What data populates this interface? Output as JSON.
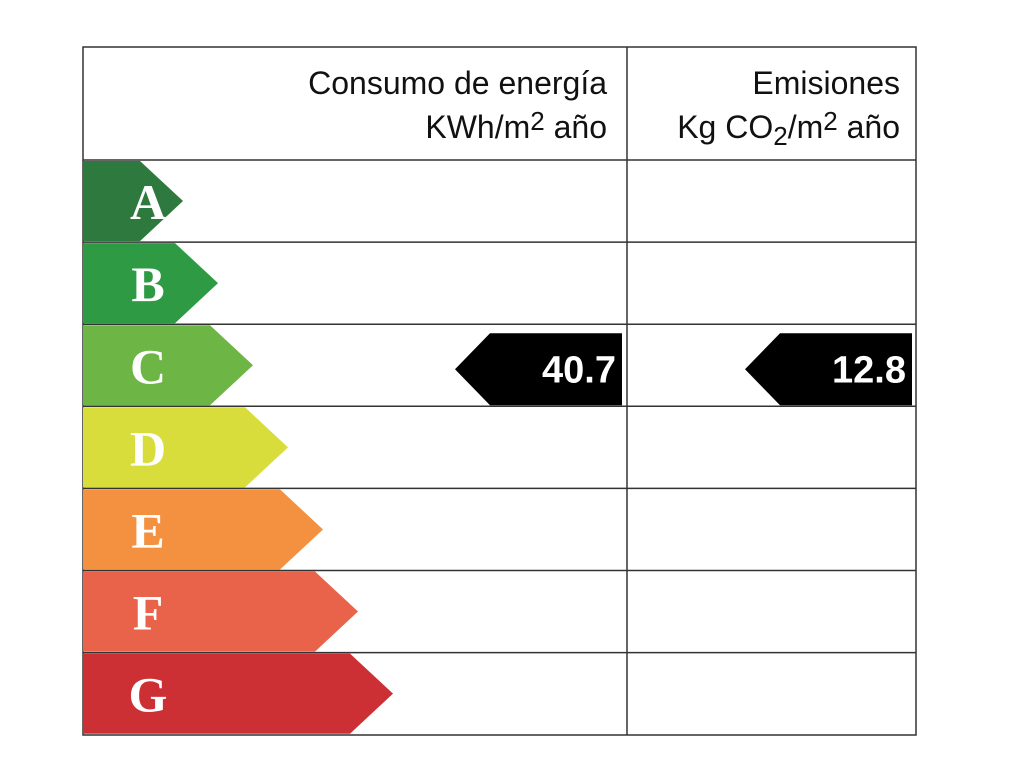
{
  "header": {
    "consumption": {
      "line1": "Consumo de energía",
      "unit_parts": [
        "KWh/m",
        "2",
        " año"
      ]
    },
    "emissions": {
      "line1": "Emisiones",
      "unit_parts": [
        "Kg CO",
        "2",
        "/m",
        "2",
        " año"
      ]
    }
  },
  "ratings": [
    {
      "letter": "A",
      "color": "#2e7a3e"
    },
    {
      "letter": "B",
      "color": "#2f9a44"
    },
    {
      "letter": "C",
      "color": "#6db544",
      "consumption": 40.7,
      "emissions": 12.8
    },
    {
      "letter": "D",
      "color": "#d9dd3b"
    },
    {
      "letter": "E",
      "color": "#f39140"
    },
    {
      "letter": "F",
      "color": "#e8634a"
    },
    {
      "letter": "G",
      "color": "#cc3035"
    }
  ]
}
